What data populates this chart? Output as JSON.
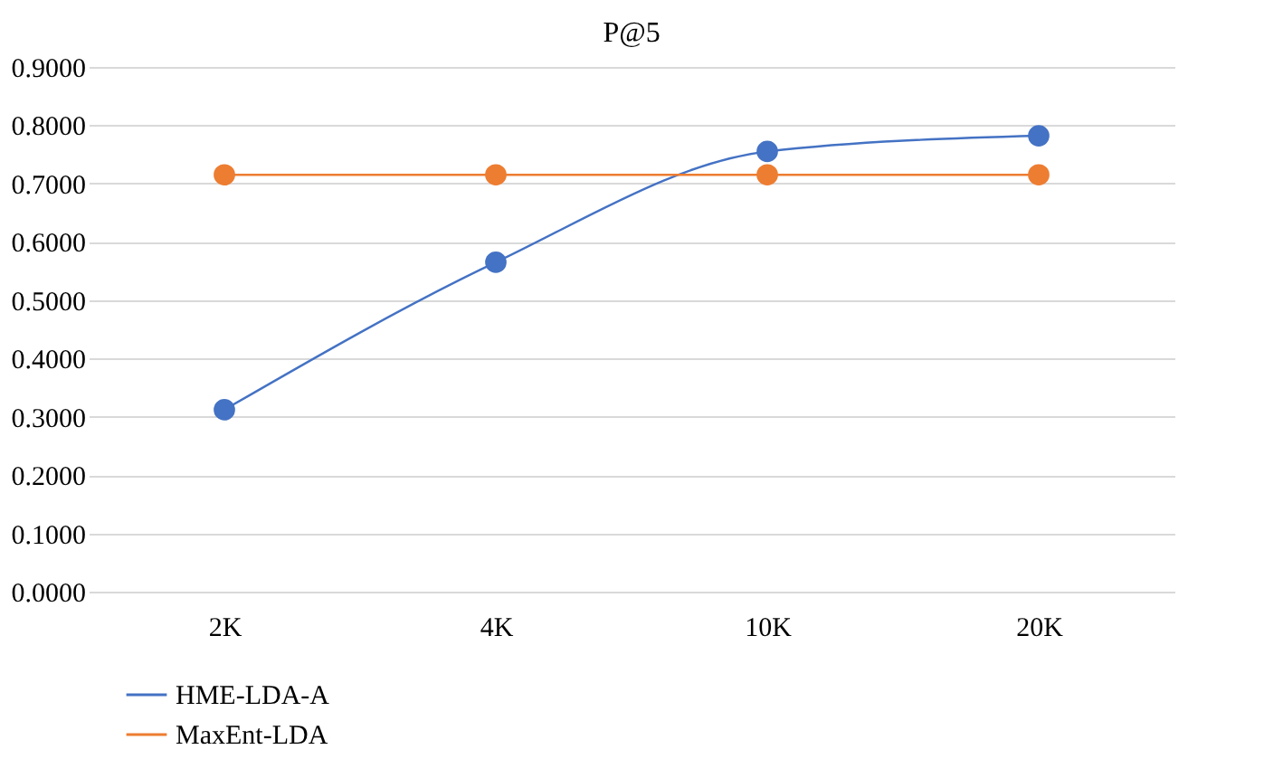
{
  "chart_data": {
    "type": "line",
    "title": "P@5",
    "categories": [
      "2K",
      "4K",
      "10K",
      "20K"
    ],
    "series": [
      {
        "name": "HME-LDA-A",
        "color": "#4472c4",
        "values": [
          0.312,
          0.565,
          0.755,
          0.782
        ]
      },
      {
        "name": "MaxEnt-LDA",
        "color": "#ed7d31",
        "values": [
          0.715,
          0.715,
          0.715,
          0.715
        ]
      }
    ],
    "ylim": [
      0,
      0.9
    ],
    "yticks": [
      {
        "value": 0,
        "label": "0.0000"
      },
      {
        "value": 0.1,
        "label": "0.1000"
      },
      {
        "value": 0.2,
        "label": "0.2000"
      },
      {
        "value": 0.3,
        "label": "0.3000"
      },
      {
        "value": 0.4,
        "label": "0.4000"
      },
      {
        "value": 0.5,
        "label": "0.5000"
      },
      {
        "value": 0.6,
        "label": "0.6000"
      },
      {
        "value": 0.7,
        "label": "0.7000"
      },
      {
        "value": 0.8,
        "label": "0.8000"
      },
      {
        "value": 0.9,
        "label": "0.9000"
      }
    ],
    "grid": "y",
    "legend": "bottom left",
    "marker": "circle",
    "line_style": "solid"
  }
}
